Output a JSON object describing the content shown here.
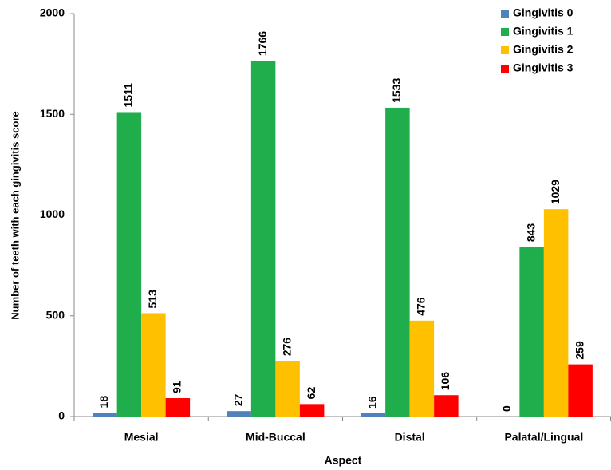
{
  "chart_data": {
    "type": "bar",
    "x_label": "Aspect",
    "y_label": "Number of teeth with each gingivitis score",
    "categories": [
      "Mesial",
      "Mid-Buccal",
      "Distal",
      "Palatal/Lingual"
    ],
    "series": [
      {
        "name": "Gingivitis 0",
        "color": "#4f81bd",
        "values": [
          18,
          27,
          16,
          0
        ]
      },
      {
        "name": "Gingivitis 1",
        "color": "#1fae4b",
        "values": [
          1511,
          1766,
          1533,
          843
        ]
      },
      {
        "name": "Gingivitis 2",
        "color": "#ffc000",
        "values": [
          513,
          276,
          476,
          1029
        ]
      },
      {
        "name": "Gingivitis 3",
        "color": "#ff0000",
        "values": [
          91,
          62,
          106,
          259
        ]
      }
    ],
    "ylim": [
      0,
      2000
    ],
    "yticks": [
      0,
      500,
      1000,
      1500,
      2000
    ],
    "grid": false,
    "legend": "top-right"
  }
}
